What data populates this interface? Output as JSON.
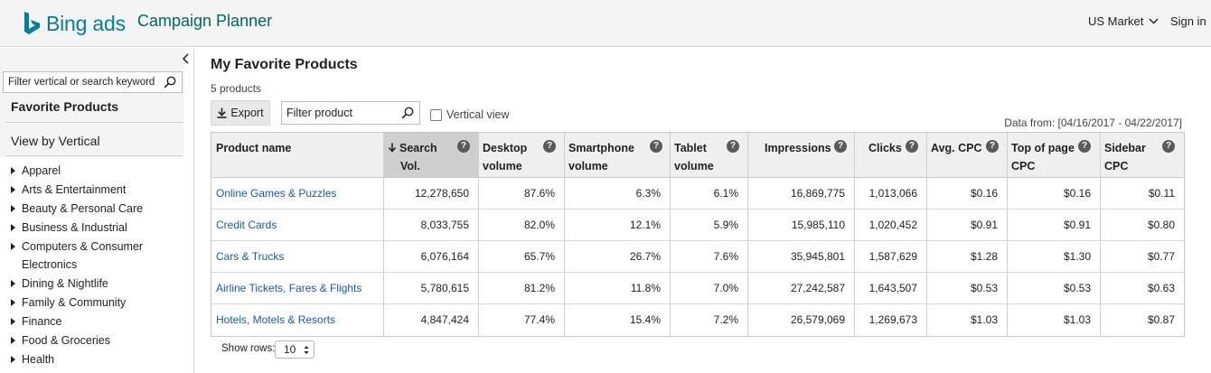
{
  "header": {
    "brand_name": "Bing ads",
    "product_name": "Campaign Planner",
    "market": "US Market",
    "sign_in": "Sign in",
    "brand_color": "#00809d"
  },
  "sidebar": {
    "search_placeholder": "Filter vertical or search keyword",
    "favorites_label": "Favorite Products",
    "view_by_label": "View by Vertical",
    "verticals": [
      "Apparel",
      "Arts & Entertainment",
      "Beauty & Personal Care",
      "Business & Industrial",
      "Computers & Consumer",
      "Dining & Nightlife",
      "Family & Community",
      "Finance",
      "Food & Groceries",
      "Health"
    ],
    "vertical_continuation": "Electronics"
  },
  "main": {
    "title": "My Favorite Products",
    "count": "5 products",
    "export_label": "Export",
    "filter_placeholder": "Filter product",
    "vertical_view_label": "Vertical view",
    "data_from": "Data from: [04/16/2017 - 04/22/2017]",
    "show_rows_label": "Show rows:",
    "show_rows_value": "10"
  },
  "table": {
    "headers": [
      {
        "line1": "Product name",
        "line2": ""
      },
      {
        "line1": "Search",
        "line2": "Vol."
      },
      {
        "line1": "Desktop",
        "line2": "volume"
      },
      {
        "line1": "Smartphone",
        "line2": "volume"
      },
      {
        "line1": "Tablet",
        "line2": "volume"
      },
      {
        "line1": "Impressions",
        "line2": ""
      },
      {
        "line1": "Clicks",
        "line2": ""
      },
      {
        "line1": "Avg. CPC",
        "line2": ""
      },
      {
        "line1": "Top of page",
        "line2": "CPC"
      },
      {
        "line1": "Sidebar",
        "line2": "CPC"
      }
    ],
    "sorted_column": 1,
    "rows": [
      [
        "Online Games & Puzzles",
        "12,278,650",
        "87.6%",
        "6.3%",
        "6.1%",
        "16,869,775",
        "1,013,066",
        "$0.16",
        "$0.16",
        "$0.11"
      ],
      [
        "Credit Cards",
        "8,033,755",
        "82.0%",
        "12.1%",
        "5.9%",
        "15,985,110",
        "1,020,452",
        "$0.91",
        "$0.91",
        "$0.80"
      ],
      [
        "Cars & Trucks",
        "6,076,164",
        "65.7%",
        "26.7%",
        "7.6%",
        "35,945,801",
        "1,587,629",
        "$1.28",
        "$1.30",
        "$0.77"
      ],
      [
        "Airline Tickets, Fares & Flights",
        "5,780,615",
        "81.2%",
        "11.8%",
        "7.0%",
        "27,242,587",
        "1,643,507",
        "$0.53",
        "$0.53",
        "$0.63"
      ],
      [
        "Hotels, Motels & Resorts",
        "4,847,424",
        "77.4%",
        "15.4%",
        "7.2%",
        "26,579,069",
        "1,269,673",
        "$1.03",
        "$1.03",
        "$0.87"
      ]
    ]
  },
  "icons": {
    "brand": "bing-logo-icon",
    "market_dropdown": "chevron-down-icon",
    "collapse": "chevron-left-icon",
    "search": "search-icon",
    "export": "download-icon",
    "info": "info-icon",
    "sort": "arrow-down-icon"
  }
}
